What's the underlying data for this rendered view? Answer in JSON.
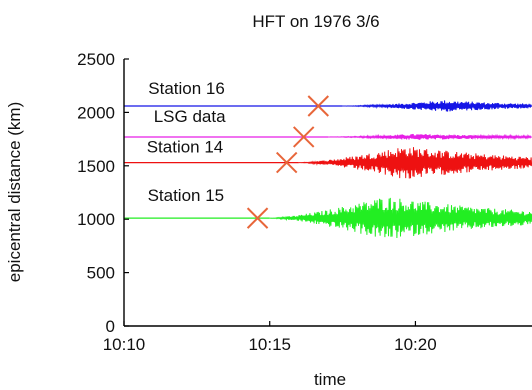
{
  "chart_data": {
    "type": "line",
    "title": "HFT on 1976 3/6",
    "xlabel": "time",
    "ylabel": "epicentral distance (km)",
    "xlim": [
      "10:10",
      "10:24"
    ],
    "ylim": [
      0,
      2500
    ],
    "x_ticks": [
      "10:10",
      "10:15",
      "10:20"
    ],
    "y_ticks": [
      0,
      500,
      1000,
      1500,
      2000,
      2500
    ],
    "grid": false,
    "series": [
      {
        "name": "Station 16",
        "color": "#1515e6",
        "distance_km": 2060,
        "event_onset": "10:16:40",
        "signal_start": "10:17:30",
        "peak": "10:21:00",
        "amplitude_km": 55
      },
      {
        "name": "LSG data",
        "color": "#e61ee6",
        "distance_km": 1770,
        "event_onset": "10:16:10",
        "signal_start": "10:17:00",
        "peak": "10:20:00",
        "amplitude_km": 30
      },
      {
        "name": "Station 14",
        "color": "#ee1111",
        "distance_km": 1530,
        "event_onset": "10:15:35",
        "signal_start": "10:16:00",
        "peak": "10:19:40",
        "amplitude_km": 160
      },
      {
        "name": "Station 15",
        "color": "#22ee22",
        "distance_km": 1010,
        "event_onset": "10:14:35",
        "signal_start": "10:15:00",
        "peak": "10:19:00",
        "amplitude_km": 210
      }
    ],
    "markers": {
      "symbol": "X",
      "color": "#e8663a"
    }
  }
}
